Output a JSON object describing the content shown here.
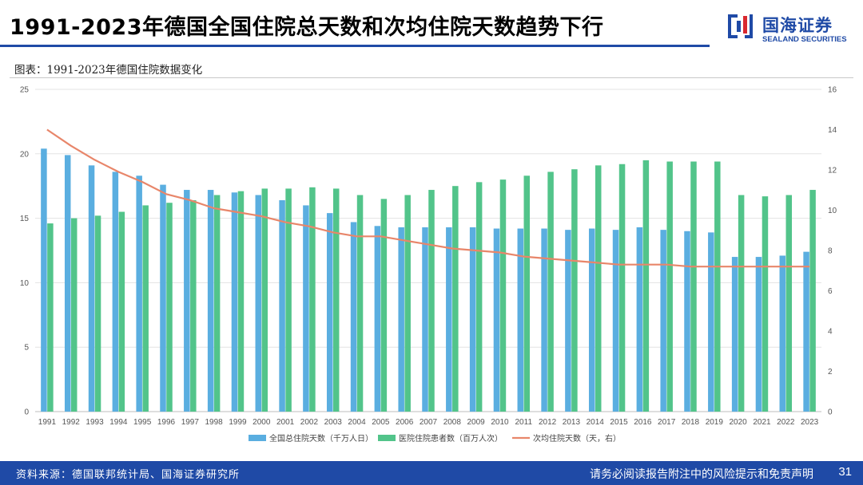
{
  "header": {
    "title": "1991-2023年德国全国住院总天数和次均住院天数趋势下行"
  },
  "logo": {
    "brand_cn": "国海证券",
    "brand_en": "SEALAND SECURITIES",
    "color": "#1f4aa6"
  },
  "subtitle": "图表：1991-2023年德国住院数据变化",
  "chart_data": {
    "type": "bar",
    "categories": [
      "1991",
      "1992",
      "1993",
      "1994",
      "1995",
      "1996",
      "1997",
      "1998",
      "1999",
      "2000",
      "2001",
      "2002",
      "2003",
      "2004",
      "2005",
      "2006",
      "2007",
      "2008",
      "2009",
      "2010",
      "2011",
      "2012",
      "2013",
      "2014",
      "2015",
      "2016",
      "2017",
      "2018",
      "2019",
      "2020",
      "2021",
      "2022",
      "2023"
    ],
    "y_left": {
      "range": [
        0,
        25
      ],
      "ticks": [
        "0",
        "5",
        "10",
        "15",
        "20",
        "25"
      ]
    },
    "y_right": {
      "range": [
        0,
        16
      ],
      "ticks": [
        "0",
        "2",
        "4",
        "6",
        "8",
        "10",
        "12",
        "14",
        "16"
      ]
    },
    "series": [
      {
        "name": "全国总住院天数（千万人日）",
        "type": "bar",
        "axis": "left",
        "color": "#5aaee0",
        "values": [
          20.4,
          19.9,
          19.1,
          18.6,
          18.3,
          17.6,
          17.2,
          17.2,
          17.0,
          16.8,
          16.4,
          16.0,
          15.4,
          14.7,
          14.4,
          14.3,
          14.3,
          14.3,
          14.3,
          14.2,
          14.2,
          14.2,
          14.1,
          14.2,
          14.1,
          14.3,
          14.1,
          14.0,
          13.9,
          12.0,
          12.0,
          12.1,
          12.4
        ]
      },
      {
        "name": "医院住院患者数（百万人次）",
        "type": "bar",
        "axis": "left",
        "color": "#52c48a",
        "values": [
          14.6,
          15.0,
          15.2,
          15.5,
          16.0,
          16.2,
          16.4,
          16.8,
          17.1,
          17.3,
          17.3,
          17.4,
          17.3,
          16.8,
          16.5,
          16.8,
          17.2,
          17.5,
          17.8,
          18.0,
          18.3,
          18.6,
          18.8,
          19.1,
          19.2,
          19.5,
          19.4,
          19.4,
          19.4,
          16.8,
          16.7,
          16.8,
          17.2
        ]
      },
      {
        "name": "次均住院天数（天，右）",
        "type": "line",
        "axis": "right",
        "color": "#e8866a",
        "values": [
          14.0,
          13.2,
          12.5,
          11.9,
          11.4,
          10.8,
          10.5,
          10.1,
          9.9,
          9.7,
          9.4,
          9.2,
          8.9,
          8.7,
          8.7,
          8.5,
          8.3,
          8.1,
          8.0,
          7.9,
          7.7,
          7.6,
          7.5,
          7.4,
          7.3,
          7.3,
          7.3,
          7.2,
          7.2,
          7.2,
          7.2,
          7.2,
          7.2
        ]
      }
    ],
    "grid": true,
    "legend_position": "bottom"
  },
  "footer": {
    "source": "资料来源：德国联邦统计局、国海证券研究所",
    "disclaimer": "请务必阅读报告附注中的风险提示和免责声明",
    "page": "31"
  }
}
